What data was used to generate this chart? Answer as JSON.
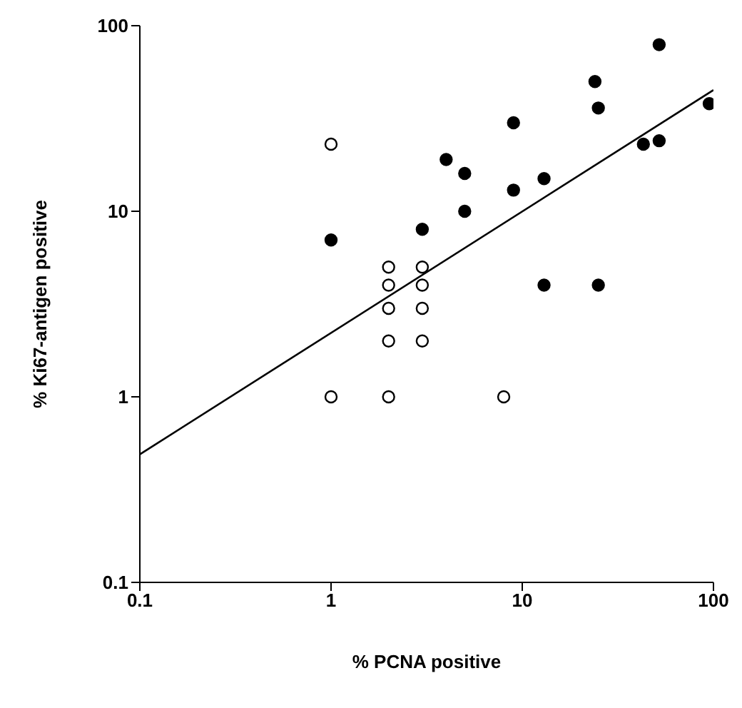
{
  "chart_data": {
    "type": "scatter",
    "xlabel": "% PCNA positive",
    "ylabel": "% Ki67-antigen positive",
    "log": "xy",
    "xlim": [
      0.1,
      100
    ],
    "ylim": [
      0.1,
      100
    ],
    "xticks": [
      0.1,
      1,
      10,
      100
    ],
    "yticks": [
      0.1,
      1,
      10,
      100
    ],
    "grid": false,
    "legend": false,
    "marker": "circle",
    "series": [
      {
        "color": "#000000",
        "x": [
          1,
          3,
          4,
          5,
          5,
          9,
          9,
          13,
          13,
          24,
          25,
          25,
          43,
          52,
          52,
          95
        ],
        "values": [
          7,
          8,
          19,
          16,
          10,
          30,
          13,
          15,
          4,
          50,
          36,
          4,
          23,
          79,
          24,
          38
        ]
      },
      {
        "color": "#ffffff",
        "x": [
          1,
          2,
          2,
          2,
          2,
          2,
          3,
          3,
          3,
          3,
          1,
          8
        ],
        "values": [
          23,
          5,
          4,
          3,
          2,
          1,
          5,
          4,
          3,
          2,
          1,
          1
        ]
      },
      {
        "type": "line",
        "color": "#000000",
        "marker": "none",
        "line_style": "solid",
        "x": [
          0.1,
          100
        ],
        "values": [
          0.49,
          45
        ]
      }
    ]
  }
}
